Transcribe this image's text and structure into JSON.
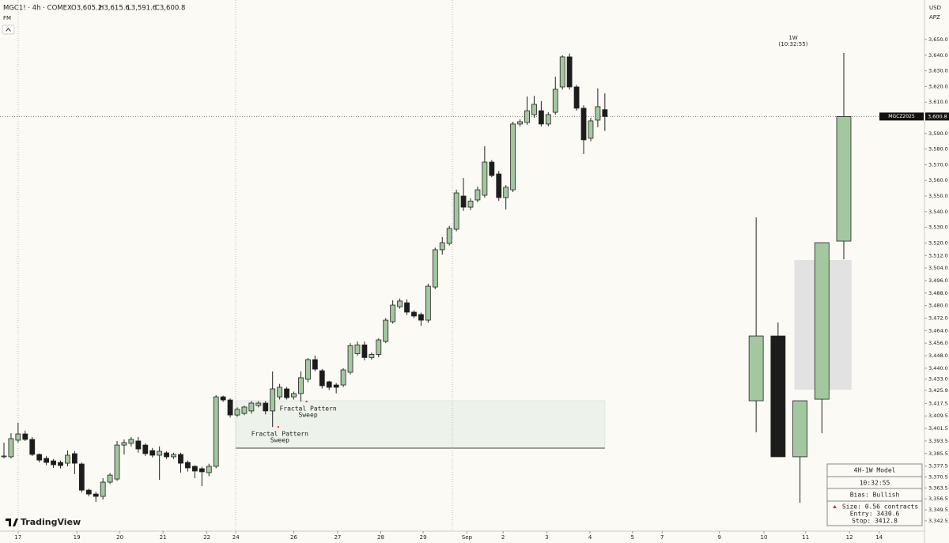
{
  "chart_data": {
    "type": "candlestick",
    "symbol": "MGC1! · 4h · COMEX",
    "ohlc_labels": [
      "O3,605.2",
      "H3,615.6",
      "L3,591.6",
      "C3,600.8"
    ],
    "indicator": "FM",
    "currency": "USD",
    "pane_label": "APZ",
    "ticker_tag": "MGCZ2025",
    "last_price": {
      "value": 3600.8,
      "label": "3,600.8"
    },
    "up_color": "#a3c8a0",
    "down_color": "#1c1c1c",
    "candles": {
      "x": [
        0,
        1,
        2,
        3,
        4,
        5,
        6,
        7,
        8,
        9,
        10,
        11,
        12,
        13,
        14,
        15,
        16,
        17,
        18,
        19,
        20,
        21,
        22,
        23,
        24,
        25,
        26,
        27,
        28,
        29,
        30,
        31,
        32,
        33,
        34,
        35,
        36,
        37,
        38,
        39,
        40,
        41,
        42,
        43,
        44,
        45,
        46,
        47,
        48,
        49,
        50,
        51,
        52,
        53,
        54,
        55,
        56,
        57,
        58,
        59,
        60,
        61,
        62,
        63,
        64,
        65,
        66,
        67,
        68,
        69,
        70,
        71,
        72,
        73,
        74,
        75,
        76,
        77,
        78,
        79,
        80,
        81,
        82,
        83,
        84,
        85
      ],
      "open": [
        3383.4,
        3383.4,
        3394.0,
        3398.0,
        3394.5,
        3384.9,
        3382.4,
        3380.8,
        3379.8,
        3379.3,
        3385.4,
        3378.8,
        3362.1,
        3359.6,
        3358.1,
        3367.2,
        3369.2,
        3390.9,
        3392.0,
        3393.5,
        3390.9,
        3387.4,
        3384.4,
        3385.9,
        3383.4,
        3384.9,
        3379.8,
        3377.3,
        3375.8,
        3373.3,
        3377.3,
        3421.7,
        3419.7,
        3410.1,
        3411.1,
        3412.7,
        3416.2,
        3417.7,
        3412.7,
        3421.7,
        3426.8,
        3421.7,
        3423.8,
        3432.9,
        3445.5,
        3438.4,
        3431.3,
        3429.3,
        3429.3,
        3437.4,
        3449.3,
        3454.9,
        3446.8,
        3448.8,
        3457.1,
        3469.7,
        3479.3,
        3481.8,
        3475.8,
        3474.3,
        3470.7,
        3491.9,
        3515.7,
        3519.7,
        3528.8,
        3550.0,
        3542.9,
        3547.5,
        3550.5,
        3571.7,
        3564.1,
        3549.0,
        3554.0,
        3596.0,
        3597.0,
        3602.0,
        3604.5,
        3596.0,
        3603.5,
        3619.7,
        3638.9,
        3619.7,
        3606.1,
        3586.9,
        3598.5,
        3605.2
      ],
      "high": [
        3392.4,
        3398.5,
        3405.1,
        3400.0,
        3396.0,
        3385.5,
        3384.0,
        3382.0,
        3381.0,
        3387.4,
        3387.0,
        3379.8,
        3363.0,
        3361.0,
        3369.7,
        3373.0,
        3393.5,
        3394.5,
        3396.0,
        3396.0,
        3392.0,
        3389.0,
        3390.0,
        3387.0,
        3386.0,
        3386.0,
        3381.0,
        3378.0,
        3377.0,
        3379.0,
        3422.8,
        3422.5,
        3420.7,
        3415.0,
        3416.0,
        3419.0,
        3419.0,
        3419.0,
        3437.9,
        3430.0,
        3428.0,
        3425.0,
        3438.0,
        3446.5,
        3448.0,
        3439.5,
        3432.0,
        3430.5,
        3440.0,
        3456.0,
        3457.0,
        3457.0,
        3450.0,
        3459.0,
        3472.0,
        3483.4,
        3484.5,
        3484.0,
        3477.0,
        3475.5,
        3494.0,
        3517.0,
        3523.8,
        3531.0,
        3554.0,
        3561.6,
        3548.5,
        3556.0,
        3581.8,
        3573.0,
        3566.0,
        3557.0,
        3597.5,
        3599.0,
        3613.6,
        3614.0,
        3610.6,
        3603.5,
        3626.3,
        3639.9,
        3641.0,
        3621.0,
        3608.0,
        3600.0,
        3618.7,
        3615.6
      ],
      "low": [
        3382.4,
        3382.4,
        3392.5,
        3393.5,
        3383.9,
        3379.8,
        3378.0,
        3376.3,
        3376.0,
        3377.3,
        3372.3,
        3360.6,
        3358.1,
        3354.6,
        3356.1,
        3366.0,
        3368.0,
        3385.0,
        3390.0,
        3386.0,
        3384.0,
        3383.0,
        3368.7,
        3382.0,
        3382.0,
        3373.3,
        3374.0,
        3369.7,
        3364.7,
        3371.0,
        3376.0,
        3418.5,
        3408.5,
        3409.0,
        3410.0,
        3411.0,
        3415.0,
        3410.5,
        3402.5,
        3420.0,
        3420.0,
        3420.0,
        3418.7,
        3431.0,
        3438.0,
        3427.0,
        3426.0,
        3424.0,
        3428.0,
        3436.0,
        3448.0,
        3445.0,
        3445.5,
        3447.0,
        3456.0,
        3468.5,
        3478.0,
        3474.0,
        3472.0,
        3467.2,
        3469.0,
        3490.5,
        3512.6,
        3518.5,
        3527.5,
        3540.5,
        3541.0,
        3546.0,
        3549.0,
        3562.0,
        3547.0,
        3541.4,
        3552.5,
        3594.5,
        3595.5,
        3600.0,
        3594.5,
        3594.5,
        3602.0,
        3618.0,
        3618.0,
        3604.5,
        3576.8,
        3585.0,
        3594.0,
        3591.6
      ],
      "close": [
        3383.9,
        3395.0,
        3398.0,
        3394.5,
        3384.9,
        3381.3,
        3379.8,
        3378.3,
        3377.8,
        3384.4,
        3379.3,
        3362.1,
        3359.6,
        3358.1,
        3367.2,
        3371.7,
        3390.9,
        3392.5,
        3394.5,
        3388.4,
        3385.4,
        3384.4,
        3386.9,
        3383.4,
        3384.9,
        3379.3,
        3376.3,
        3374.3,
        3373.8,
        3377.3,
        3421.7,
        3419.7,
        3410.1,
        3413.7,
        3415.2,
        3417.7,
        3417.7,
        3412.7,
        3426.8,
        3427.8,
        3421.2,
        3423.8,
        3433.9,
        3445.5,
        3439.4,
        3428.8,
        3427.8,
        3427.8,
        3438.9,
        3454.4,
        3454.9,
        3446.8,
        3448.8,
        3458.1,
        3470.7,
        3480.3,
        3482.9,
        3475.8,
        3473.3,
        3470.7,
        3492.4,
        3515.7,
        3520.2,
        3529.3,
        3552.0,
        3542.9,
        3546.8,
        3554.0,
        3571.7,
        3563.1,
        3549.0,
        3555.6,
        3596.0,
        3597.5,
        3604.5,
        3608.6,
        3596.0,
        3602.0,
        3618.2,
        3638.9,
        3619.7,
        3606.1,
        3585.9,
        3598.0,
        3607.1,
        3600.8
      ]
    },
    "weekly": {
      "label": "1W",
      "timer": "(10:32:55)",
      "x": [
        106.4,
        109.5,
        112.6,
        115.7,
        118.8
      ],
      "open": [
        3419.2,
        3460.6,
        3383.4,
        3420.2,
        3521.2
      ],
      "high": [
        3536.4,
        3469.2,
        3419.2,
        3520.2,
        3641.4
      ],
      "low": [
        3399.0,
        3383.4,
        3354.1,
        3398.5,
        3509.6
      ],
      "close": [
        3460.6,
        3383.4,
        3419.2,
        3520.2,
        3600.8
      ]
    },
    "zones": [
      {
        "x": [
          32.8,
          85.0
        ],
        "y": [
          3388.9,
          3419.2
        ],
        "color": "#edf2ea"
      },
      {
        "x": [
          111.8,
          119.9
        ],
        "y": [
          3426.3,
          3509.1
        ],
        "color": "#e2e2e2"
      }
    ],
    "annotations": [
      {
        "lines": [
          "Fractal Pattern",
          "Sweep"
        ],
        "x": 38.8,
        "y": 3402.5
      },
      {
        "lines": [
          "Fractal Pattern",
          "Sweep"
        ],
        "x": 42.8,
        "y": 3418.7
      }
    ],
    "info_box": {
      "rows": [
        "4H-1W Model",
        "10:32:55",
        "Bias: Bullish"
      ],
      "position": [
        "Size: 0.56 contracts",
        "Entry: 3430.6",
        "Stop: 3412.8"
      ]
    },
    "logo": "TradingView",
    "xlim": [
      -0.56,
      130.1
    ],
    "ylim": [
      3335.9,
      3671.2
    ],
    "xticks": [
      {
        "value": 2.0,
        "label": "17"
      },
      {
        "value": 10.3,
        "label": "19"
      },
      {
        "value": 16.4,
        "label": "20"
      },
      {
        "value": 22.5,
        "label": "21"
      },
      {
        "value": 28.7,
        "label": "22"
      },
      {
        "value": 32.8,
        "label": "24"
      },
      {
        "value": 41.0,
        "label": "26"
      },
      {
        "value": 47.2,
        "label": "27"
      },
      {
        "value": 53.3,
        "label": "28"
      },
      {
        "value": 59.3,
        "label": "29"
      },
      {
        "value": 65.5,
        "label": "Sep"
      },
      {
        "value": 70.6,
        "label": "2"
      },
      {
        "value": 76.8,
        "label": "3"
      },
      {
        "value": 82.9,
        "label": "4"
      },
      {
        "value": 88.9,
        "label": "5"
      },
      {
        "value": 93.1,
        "label": "7"
      },
      {
        "value": 101.2,
        "label": "9"
      },
      {
        "value": 107.5,
        "label": "10"
      },
      {
        "value": 113.4,
        "label": "11"
      },
      {
        "value": 119.6,
        "label": "12"
      },
      {
        "value": 123.8,
        "label": "14"
      }
    ],
    "yticks": [
      {
        "value": 3650,
        "label": "3,650.0"
      },
      {
        "value": 3640,
        "label": "3,640.0"
      },
      {
        "value": 3630,
        "label": "3,630.0"
      },
      {
        "value": 3620,
        "label": "3,620.0"
      },
      {
        "value": 3610,
        "label": "3,610.0"
      },
      {
        "value": 3590,
        "label": "3,590.0"
      },
      {
        "value": 3580,
        "label": "3,580.0"
      },
      {
        "value": 3570,
        "label": "3,570.0"
      },
      {
        "value": 3560,
        "label": "3,560.0"
      },
      {
        "value": 3550,
        "label": "3,550.0"
      },
      {
        "value": 3540,
        "label": "3,540.0"
      },
      {
        "value": 3530,
        "label": "3,530.0"
      },
      {
        "value": 3520,
        "label": "3,520.0"
      },
      {
        "value": 3512,
        "label": "3,512.0"
      },
      {
        "value": 3504,
        "label": "3,504.0"
      },
      {
        "value": 3496,
        "label": "3,496.0"
      },
      {
        "value": 3488,
        "label": "3,488.0"
      },
      {
        "value": 3480,
        "label": "3,480.0"
      },
      {
        "value": 3472,
        "label": "3,472.0"
      },
      {
        "value": 3464,
        "label": "3,464.0"
      },
      {
        "value": 3456,
        "label": "3,456.0"
      },
      {
        "value": 3448,
        "label": "3,448.0"
      },
      {
        "value": 3440,
        "label": "3,440.0"
      },
      {
        "value": 3433,
        "label": "3,433.0"
      },
      {
        "value": 3425.9,
        "label": "3,425.9"
      },
      {
        "value": 3417.5,
        "label": "3,417.5"
      },
      {
        "value": 3409.5,
        "label": "3,409.5"
      },
      {
        "value": 3401.5,
        "label": "3,401.5"
      },
      {
        "value": 3393.5,
        "label": "3,393.5"
      },
      {
        "value": 3385.5,
        "label": "3,385.5"
      },
      {
        "value": 3377.5,
        "label": "3,377.5"
      },
      {
        "value": 3370.5,
        "label": "3,370.5"
      },
      {
        "value": 3363.5,
        "label": "3,363.5"
      },
      {
        "value": 3356.5,
        "label": "3,356.5"
      },
      {
        "value": 3349.5,
        "label": "3,349.5"
      },
      {
        "value": 3342.5,
        "label": "3,342.5"
      }
    ]
  }
}
